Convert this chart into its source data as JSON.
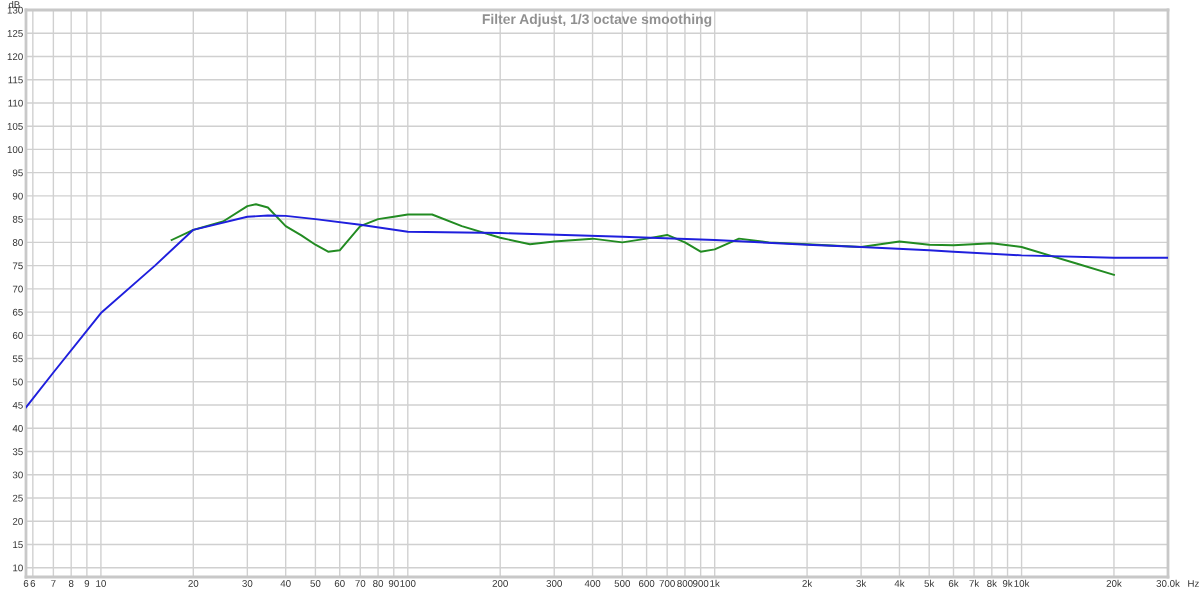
{
  "chart_data": {
    "type": "line",
    "title": "Filter Adjust, 1/3 octave smoothing",
    "xlabel": "Hz",
    "ylabel": "dB",
    "log": "x",
    "grid": true,
    "xlim": [
      5.7,
      30000
    ],
    "ylim": [
      8,
      130
    ],
    "xticks": [
      {
        "value": 5.7,
        "label": "6"
      },
      6,
      7,
      8,
      9,
      10,
      20,
      30,
      40,
      50,
      60,
      70,
      80,
      90,
      100,
      200,
      300,
      400,
      500,
      600,
      700,
      800,
      900,
      {
        "value": 1000,
        "label": "1k"
      },
      {
        "value": 2000,
        "label": "2k"
      },
      {
        "value": 3000,
        "label": "3k"
      },
      {
        "value": 4000,
        "label": "4k"
      },
      {
        "value": 5000,
        "label": "5k"
      },
      {
        "value": 6000,
        "label": "6k"
      },
      {
        "value": 7000,
        "label": "7k"
      },
      {
        "value": 8000,
        "label": "8k"
      },
      {
        "value": 9000,
        "label": "9k"
      },
      {
        "value": 10000,
        "label": "10k"
      },
      {
        "value": 20000,
        "label": "20k"
      },
      {
        "value": 30000,
        "label": "30.0k"
      }
    ],
    "yticks": [
      10,
      15,
      20,
      25,
      30,
      35,
      40,
      45,
      50,
      55,
      60,
      65,
      70,
      75,
      80,
      85,
      90,
      95,
      100,
      105,
      110,
      115,
      120,
      125,
      130
    ],
    "series": [
      {
        "color": "#228b22",
        "x": [
          17,
          20,
          25,
          30,
          32,
          35,
          40,
          45,
          50,
          55,
          60,
          70,
          80,
          90,
          100,
          120,
          150,
          200,
          250,
          300,
          400,
          500,
          600,
          700,
          800,
          900,
          1000,
          1200,
          1500,
          2000,
          3000,
          4000,
          5000,
          6000,
          8000,
          10000,
          15000,
          20000
        ],
        "values": [
          80.5,
          82.7,
          84.5,
          87.8,
          88.2,
          87.5,
          83.5,
          81.5,
          79.5,
          78,
          78.3,
          83.5,
          85,
          85.5,
          86,
          86,
          83.5,
          81,
          79.6,
          80.2,
          80.8,
          80,
          80.8,
          81.6,
          80,
          78,
          78.5,
          80.8,
          80,
          79.6,
          79,
          80.2,
          79.5,
          79.4,
          79.8,
          79,
          75.5,
          73
        ]
      },
      {
        "color": "#1f1fdd",
        "x": [
          5.7,
          7,
          10,
          15,
          20,
          30,
          35,
          40,
          50,
          70,
          100,
          200,
          500,
          1000,
          2000,
          3000,
          5000,
          6000,
          10000,
          20000,
          30000
        ],
        "values": [
          44.5,
          52,
          64.8,
          75,
          82.7,
          85.5,
          85.8,
          85.7,
          85,
          83.8,
          82.3,
          82,
          81.2,
          80.5,
          79.5,
          79,
          78.3,
          78,
          77.2,
          76.7,
          76.7
        ]
      }
    ]
  }
}
